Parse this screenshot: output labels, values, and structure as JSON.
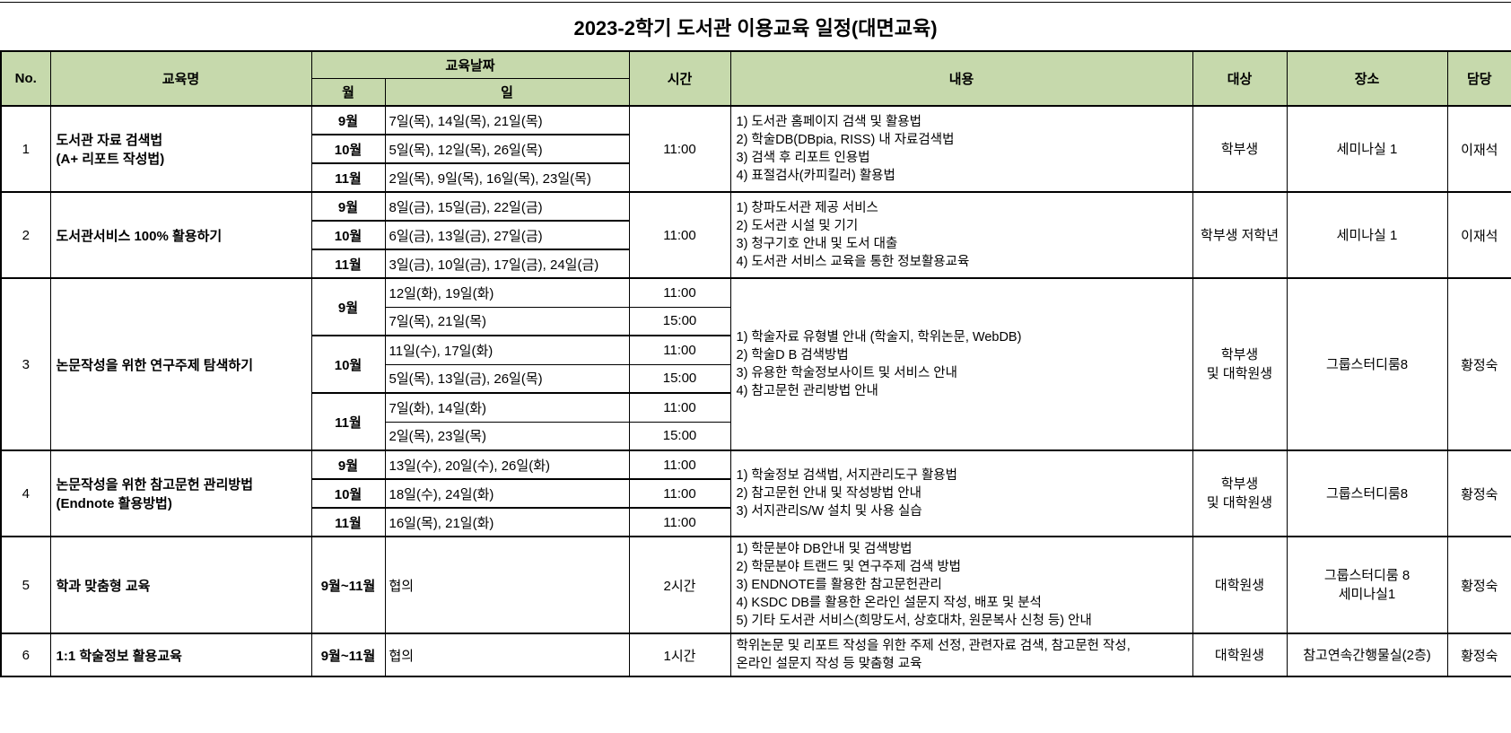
{
  "title": "2023-2학기 도서관 이용교육 일정(대면교육)",
  "columns": {
    "no": "No.",
    "name": "교육명",
    "date": "교육날짜",
    "month": "월",
    "day": "일",
    "time": "시간",
    "content": "내용",
    "target": "대상",
    "place": "장소",
    "manager": "담당"
  },
  "rows": [
    {
      "no": "1",
      "name": [
        "도서관 자료 검색법",
        "(A+ 리포트 작성법)"
      ],
      "time": "11:00",
      "schedule": [
        {
          "month": "9월",
          "slots": [
            {
              "days": "7일(목), 14일(목), 21일(목)"
            }
          ]
        },
        {
          "month": "10월",
          "slots": [
            {
              "days": "5일(목), 12일(목), 26일(목)"
            }
          ]
        },
        {
          "month": "11월",
          "slots": [
            {
              "days": "2일(목), 9일(목), 16일(목), 23일(목)"
            }
          ]
        }
      ],
      "content": [
        "1) 도서관 홈페이지 검색 및 활용법",
        "2) 학술DB(DBpia, RISS) 내 자료검색법",
        "3) 검색 후 리포트 인용법",
        "4) 표절검사(카피킬러) 활용법"
      ],
      "target": [
        "학부생"
      ],
      "place": [
        "세미나실 1"
      ],
      "manager": "이재석"
    },
    {
      "no": "2",
      "name": [
        "도서관서비스 100% 활용하기"
      ],
      "time": "11:00",
      "schedule": [
        {
          "month": "9월",
          "slots": [
            {
              "days": "8일(금), 15일(금), 22일(금)"
            }
          ]
        },
        {
          "month": "10월",
          "slots": [
            {
              "days": "6일(금), 13일(금), 27일(금)"
            }
          ]
        },
        {
          "month": "11월",
          "slots": [
            {
              "days": "3일(금), 10일(금), 17일(금), 24일(금)"
            }
          ]
        }
      ],
      "content": [
        "1) 창파도서관 제공 서비스",
        "2) 도서관 시설 및 기기",
        "3) 청구기호 안내 및 도서 대출",
        "4) 도서관 서비스 교육을 통한 정보활용교육"
      ],
      "target": [
        "학부생 저학년"
      ],
      "place": [
        "세미나실 1"
      ],
      "manager": "이재석"
    },
    {
      "no": "3",
      "name": [
        "논문작성을 위한 연구주제 탐색하기"
      ],
      "schedule": [
        {
          "month": "9월",
          "slots": [
            {
              "days": "12일(화), 19일(화)",
              "time": "11:00"
            },
            {
              "days": "7일(목), 21일(목)",
              "time": "15:00"
            }
          ]
        },
        {
          "month": "10월",
          "slots": [
            {
              "days": "11일(수), 17일(화)",
              "time": "11:00"
            },
            {
              "days": "5일(목), 13일(금), 26일(목)",
              "time": "15:00"
            }
          ]
        },
        {
          "month": "11월",
          "slots": [
            {
              "days": "7일(화), 14일(화)",
              "time": "11:00"
            },
            {
              "days": "2일(목), 23일(목)",
              "time": "15:00"
            }
          ]
        }
      ],
      "content": [
        "1) 학술자료 유형별 안내 (학술지, 학위논문, WebDB)",
        "2) 학술D B 검색방법",
        "3) 유용한 학술정보사이트 및 서비스 안내",
        "4) 참고문헌 관리방법 안내"
      ],
      "target": [
        "학부생",
        "및 대학원생"
      ],
      "place": [
        "그룹스터디룸8"
      ],
      "manager": "황정숙"
    },
    {
      "no": "4",
      "name": [
        "논문작성을 위한 참고문헌 관리방법",
        "(Endnote 활용방법)"
      ],
      "schedule": [
        {
          "month": "9월",
          "slots": [
            {
              "days": "13일(수), 20일(수), 26일(화)",
              "time": "11:00"
            }
          ]
        },
        {
          "month": "10월",
          "slots": [
            {
              "days": "18일(수), 24일(화)",
              "time": "11:00"
            }
          ]
        },
        {
          "month": "11월",
          "slots": [
            {
              "days": "16일(목), 21일(화)",
              "time": "11:00"
            }
          ]
        }
      ],
      "content": [
        "1) 학술정보 검색법, 서지관리도구 활용법",
        "2) 참고문헌 안내 및 작성방법 안내",
        "3) 서지관리S/W 설치 및 사용 실습"
      ],
      "target": [
        "학부생",
        "및 대학원생"
      ],
      "place": [
        "그룹스터디룸8"
      ],
      "manager": "황정숙"
    },
    {
      "no": "5",
      "name": [
        "학과 맞춤형 교육"
      ],
      "time": "2시간",
      "schedule": [
        {
          "month": "9월~11월",
          "slots": [
            {
              "days": "협의"
            }
          ]
        }
      ],
      "content": [
        "1) 학문분야 DB안내 및 검색방법",
        "2) 학문분야 트랜드 및 연구주제 검색 방법",
        "3) ENDNOTE를 활용한 참고문헌관리",
        "4) KSDC DB를 활용한 온라인 설문지 작성, 배포 및 분석",
        "5) 기타 도서관 서비스(희망도서, 상호대차, 원문복사 신청 등) 안내"
      ],
      "target": [
        "대학원생"
      ],
      "place": [
        "그룹스터디룸 8",
        "세미나실1"
      ],
      "manager": "황정숙"
    },
    {
      "no": "6",
      "name": [
        "1:1 학술정보 활용교육"
      ],
      "time": "1시간",
      "schedule": [
        {
          "month": "9월~11월",
          "slots": [
            {
              "days": "협의"
            }
          ]
        }
      ],
      "content": [
        "학위논문 및 리포트 작성을 위한 주제 선정, 관련자료 검색, 참고문헌 작성,",
        "온라인 설문지 작성 등 맞춤형 교육"
      ],
      "target": [
        "대학원생"
      ],
      "place": [
        "참고연속간행물실(2층)"
      ],
      "manager": "황정숙"
    }
  ],
  "colors": {
    "header_bg": "#c6d9ac",
    "border": "#000000"
  }
}
